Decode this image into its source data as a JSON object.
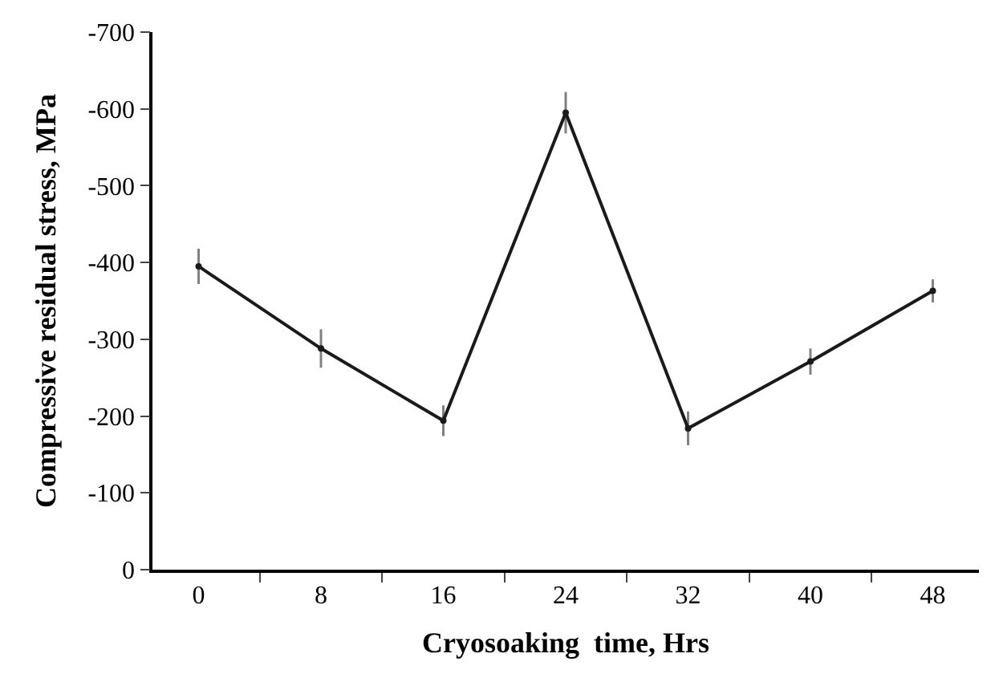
{
  "chart_data": {
    "type": "line",
    "xlabel": "Cryosoaking  time, Hrs",
    "ylabel": "Compressive residual stress, MPa",
    "categories": [
      "0",
      "8",
      "16",
      "24",
      "32",
      "40",
      "48"
    ],
    "series": [
      {
        "color": "#1a1a1a",
        "values": [
          -395,
          -288,
          -194,
          -595,
          -184,
          -271,
          -363
        ],
        "errors": [
          23,
          25,
          20,
          27,
          22,
          17,
          15
        ]
      }
    ],
    "ylim": [
      0,
      -700
    ],
    "yticks": [
      0,
      -100,
      -200,
      -300,
      -400,
      -500,
      -600,
      -700
    ],
    "legend": false,
    "marker": "circle",
    "line_style": "solid"
  }
}
